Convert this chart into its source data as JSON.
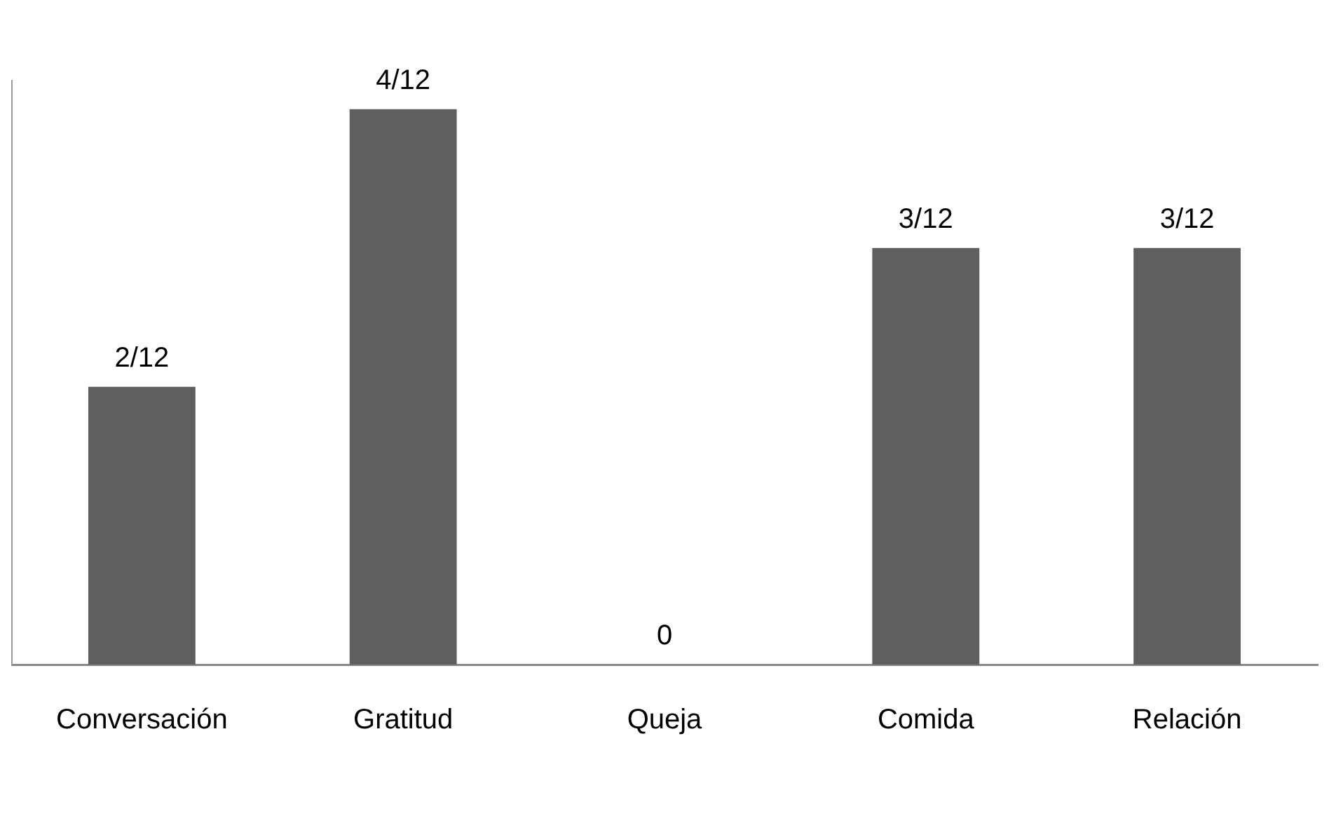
{
  "chart_data": {
    "type": "bar",
    "categories": [
      "Conversación",
      "Gratitud",
      "Queja",
      "Comida",
      "Relación"
    ],
    "values": [
      0.1667,
      0.3333,
      0,
      0.25,
      0.25
    ],
    "value_labels": [
      "2/12",
      "4/12",
      "0",
      "3/12",
      "3/12"
    ],
    "color": "#5f5f5f",
    "grid": false,
    "legend": false
  }
}
